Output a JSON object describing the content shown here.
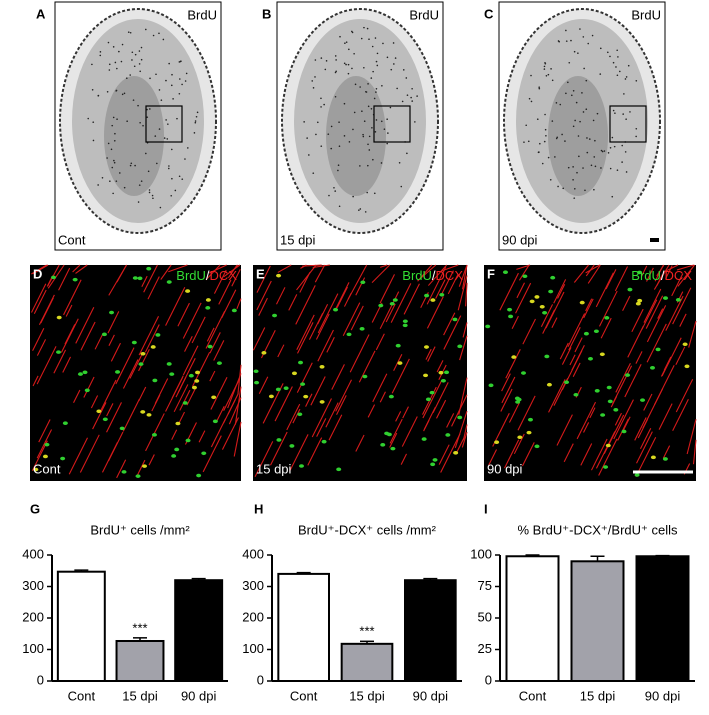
{
  "panels": [
    {
      "letter": "A",
      "stain": [
        {
          "text": "BrdU",
          "color": "#000000"
        }
      ],
      "condition": "Cont"
    },
    {
      "letter": "B",
      "stain": [
        {
          "text": "BrdU",
          "color": "#000000"
        }
      ],
      "condition": "15 dpi"
    },
    {
      "letter": "C",
      "stain": [
        {
          "text": "BrdU",
          "color": "#000000"
        }
      ],
      "condition": "90 dpi"
    },
    {
      "letter": "D",
      "stain": [
        {
          "text": "BrdU",
          "color": "#33dd33"
        },
        {
          "text": "/",
          "color": "#ffffff"
        },
        {
          "text": "DCX",
          "color": "#ee2222"
        }
      ],
      "condition": "Cont"
    },
    {
      "letter": "E",
      "stain": [
        {
          "text": "BrdU",
          "color": "#33dd33"
        },
        {
          "text": "/",
          "color": "#ffffff"
        },
        {
          "text": "DCX",
          "color": "#ee2222"
        }
      ],
      "condition": "15 dpi"
    },
    {
      "letter": "F",
      "stain": [
        {
          "text": "BrdU",
          "color": "#33dd33"
        },
        {
          "text": "/",
          "color": "#ffffff"
        },
        {
          "text": "DCX",
          "color": "#ee2222"
        }
      ],
      "condition": "90 dpi"
    }
  ],
  "chart_data": [
    {
      "type": "bar",
      "letter": "G",
      "title": "BrdU⁺ cells /mm²",
      "categories": [
        "Cont",
        "15 dpi",
        "90 dpi"
      ],
      "values": [
        347,
        127,
        320
      ],
      "errors": [
        5,
        10,
        5
      ],
      "colors": [
        "#ffffff",
        "#a2a2aa",
        "#000000"
      ],
      "significance": [
        null,
        "***",
        null
      ],
      "ylim": [
        0,
        400
      ],
      "yticks": [
        0,
        100,
        200,
        300,
        400
      ]
    },
    {
      "type": "bar",
      "letter": "H",
      "title": "BrdU⁺-DCX⁺ cells /mm²",
      "categories": [
        "Cont",
        "15 dpi",
        "90 dpi"
      ],
      "values": [
        340,
        118,
        320
      ],
      "errors": [
        4,
        8,
        5
      ],
      "colors": [
        "#ffffff",
        "#a2a2aa",
        "#000000"
      ],
      "significance": [
        null,
        "***",
        null
      ],
      "ylim": [
        0,
        400
      ],
      "yticks": [
        0,
        100,
        200,
        300,
        400
      ]
    },
    {
      "type": "bar",
      "letter": "I",
      "title": "% BrdU⁺-DCX⁺/BrdU⁺ cells",
      "categories": [
        "Cont",
        "15 dpi",
        "90 dpi"
      ],
      "values": [
        99,
        95,
        99
      ],
      "errors": [
        1,
        4,
        0.5
      ],
      "colors": [
        "#ffffff",
        "#a2a2aa",
        "#000000"
      ],
      "significance": [
        null,
        null,
        null
      ],
      "ylim": [
        0,
        100
      ],
      "yticks": [
        0,
        25,
        50,
        75,
        100
      ]
    }
  ]
}
